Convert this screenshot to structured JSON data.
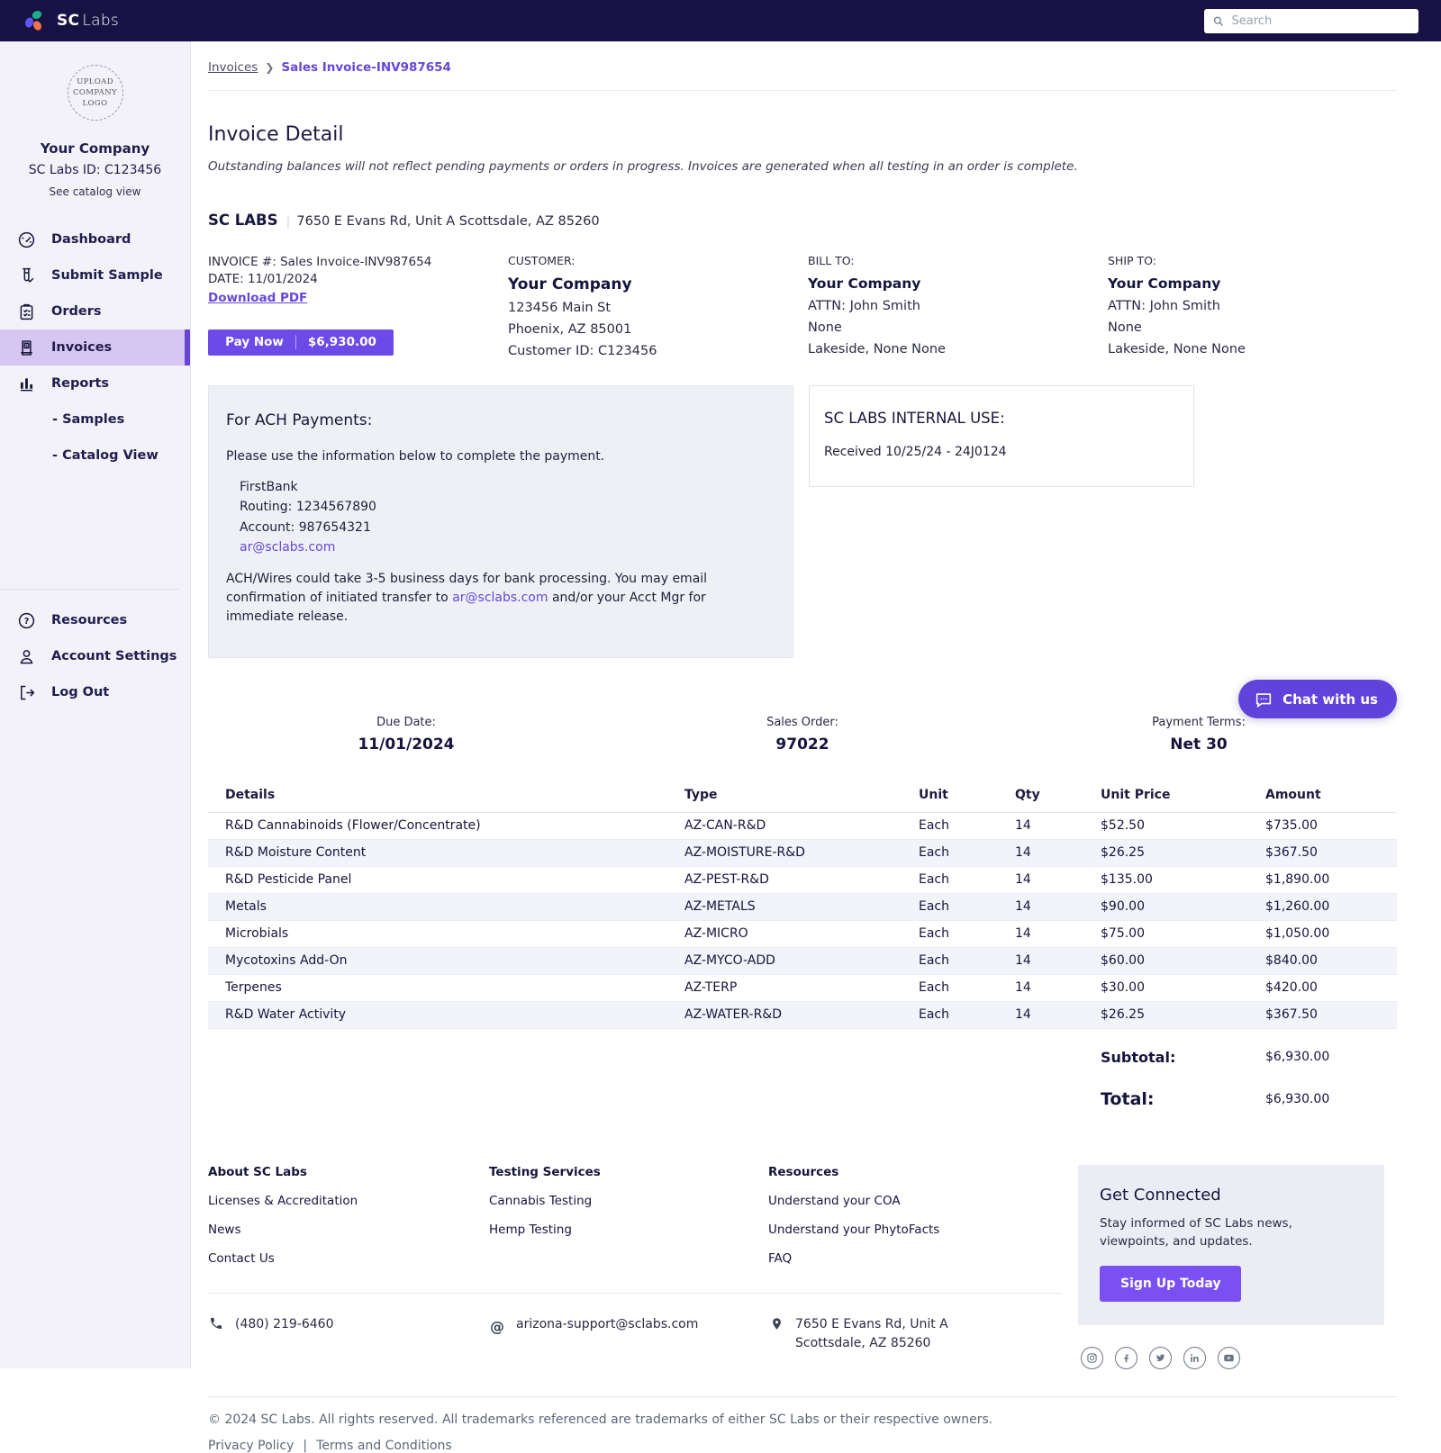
{
  "colors": {
    "topbar": "#171243",
    "accent": "#6c4ae8",
    "link": "#6747d8",
    "active_nav_bg": "#d6c6f2",
    "active_nav_border": "#6845d8",
    "stripe": "#f3f3fa",
    "chat": "#6043da",
    "signup": "#7b50f2"
  },
  "topbar": {
    "brand_bold": "SC",
    "brand_light": "Labs",
    "search_placeholder": "Search"
  },
  "sidebar": {
    "logo_placeholder": "UPLOAD COMPANY LOGO",
    "company_name": "Your Company",
    "company_id": "SC Labs ID: C123456",
    "catalog_link": "See catalog view",
    "nav": [
      {
        "id": "dashboard",
        "label": "Dashboard",
        "icon": "dashboard-icon",
        "active": false
      },
      {
        "id": "submit-sample",
        "label": "Submit Sample",
        "icon": "submit-sample-icon",
        "active": false
      },
      {
        "id": "orders",
        "label": "Orders",
        "icon": "orders-icon",
        "active": false
      },
      {
        "id": "invoices",
        "label": "Invoices",
        "icon": "invoices-icon",
        "active": true
      },
      {
        "id": "reports",
        "label": "Reports",
        "icon": "reports-icon",
        "active": false
      }
    ],
    "subnav": [
      {
        "id": "samples",
        "label": "- Samples"
      },
      {
        "id": "catalog-view",
        "label": "- Catalog View"
      }
    ],
    "bottom_nav": [
      {
        "id": "resources",
        "label": "Resources",
        "icon": "resources-icon"
      },
      {
        "id": "account-settings",
        "label": "Account Settings",
        "icon": "account-icon"
      },
      {
        "id": "log-out",
        "label": "Log Out",
        "icon": "logout-icon"
      }
    ]
  },
  "breadcrumb": {
    "parent": "Invoices",
    "separator": "❯",
    "current": "Sales Invoice-INV987654"
  },
  "page": {
    "title": "Invoice Detail",
    "note": "Outstanding balances will not reflect pending payments or orders in progress. Invoices are generated when all testing in an order is complete."
  },
  "lab_header": {
    "name": "SC LABS",
    "separator": "|",
    "address": "7650 E Evans Rd, Unit A Scottsdale, AZ 85260"
  },
  "invoice_meta": {
    "invoice_number": "INVOICE #: Sales Invoice-INV987654",
    "date": "DATE: 11/01/2024",
    "download_label": "Download PDF",
    "pay_now_label": "Pay Now",
    "pay_now_amount": "$6,930.00"
  },
  "customer": {
    "label": "CUSTOMER:",
    "company": "Your Company",
    "lines": [
      "123456 Main St",
      "Phoenix, AZ 85001",
      "Customer ID: C123456"
    ]
  },
  "bill_to": {
    "label": "BILL TO:",
    "company": "Your Company",
    "lines": [
      "ATTN: John Smith",
      "None",
      "Lakeside, None None"
    ]
  },
  "ship_to": {
    "label": "SHIP TO:",
    "company": "Your Company",
    "lines": [
      "ATTN: John Smith",
      "None",
      "Lakeside, None None"
    ]
  },
  "ach": {
    "title": "For ACH Payments:",
    "intro": "Please use the information below to complete the payment.",
    "bank_lines": [
      "FirstBank",
      "Routing: 1234567890",
      "Account: 987654321"
    ],
    "bank_email": "ar@sclabs.com",
    "note_pre": "ACH/Wires could take 3-5 business days for bank processing. You may email confirmation of initiated transfer to ",
    "note_link": "ar@sclabs.com",
    "note_post": " and/or your Acct Mgr for immediate release."
  },
  "internal": {
    "title": "SC LABS INTERNAL USE:",
    "line": "Received 10/25/24 - 24J0124"
  },
  "summary": {
    "due_date_label": "Due Date:",
    "due_date_value": "11/01/2024",
    "sales_order_label": "Sales Order:",
    "sales_order_value": "97022",
    "payment_terms_label": "Payment Terms:",
    "payment_terms_value": "Net 30"
  },
  "table": {
    "headers": [
      "Details",
      "Type",
      "Unit",
      "Qty",
      "Unit Price",
      "Amount"
    ],
    "rows": [
      {
        "details": "R&D Cannabinoids (Flower/Concentrate)",
        "type": "AZ-CAN-R&D",
        "unit": "Each",
        "qty": "14",
        "unit_price": "$52.50",
        "amount": "$735.00"
      },
      {
        "details": "R&D Moisture Content",
        "type": "AZ-MOISTURE-R&D",
        "unit": "Each",
        "qty": "14",
        "unit_price": "$26.25",
        "amount": "$367.50"
      },
      {
        "details": "R&D Pesticide Panel",
        "type": "AZ-PEST-R&D",
        "unit": "Each",
        "qty": "14",
        "unit_price": "$135.00",
        "amount": "$1,890.00"
      },
      {
        "details": "Metals",
        "type": "AZ-METALS",
        "unit": "Each",
        "qty": "14",
        "unit_price": "$90.00",
        "amount": "$1,260.00"
      },
      {
        "details": "Microbials",
        "type": "AZ-MICRO",
        "unit": "Each",
        "qty": "14",
        "unit_price": "$75.00",
        "amount": "$1,050.00"
      },
      {
        "details": "Mycotoxins Add-On",
        "type": "AZ-MYCO-ADD",
        "unit": "Each",
        "qty": "14",
        "unit_price": "$60.00",
        "amount": "$840.00"
      },
      {
        "details": "Terpenes",
        "type": "AZ-TERP",
        "unit": "Each",
        "qty": "14",
        "unit_price": "$30.00",
        "amount": "$420.00"
      },
      {
        "details": "R&D Water Activity",
        "type": "AZ-WATER-R&D",
        "unit": "Each",
        "qty": "14",
        "unit_price": "$26.25",
        "amount": "$367.50"
      }
    ],
    "subtotal_label": "Subtotal:",
    "subtotal_value": "$6,930.00",
    "total_label": "Total:",
    "total_value": "$6,930.00"
  },
  "chat": {
    "label": "Chat with us"
  },
  "footer": {
    "columns": [
      {
        "heading": "About SC Labs",
        "links": [
          "Licenses & Accreditation",
          "News",
          "Contact Us"
        ]
      },
      {
        "heading": "Testing Services",
        "links": [
          "Cannabis Testing",
          "Hemp Testing"
        ]
      },
      {
        "heading": "Resources",
        "links": [
          "Understand your COA",
          "Understand your PhytoFacts",
          "FAQ"
        ]
      }
    ],
    "contact": {
      "phone": "(480) 219-6460",
      "email": "arizona-support@sclabs.com",
      "address_line1": "7650 E Evans Rd, Unit A",
      "address_line2": "Scottsdale, AZ 85260"
    },
    "get_connected": {
      "title": "Get Connected",
      "text": "Stay informed of SC Labs news, viewpoints, and updates.",
      "button": "Sign Up Today"
    },
    "social": [
      "instagram-icon",
      "facebook-icon",
      "twitter-icon",
      "linkedin-icon",
      "youtube-icon"
    ],
    "copyright": "© 2024 SC Labs. All rights reserved. All trademarks referenced are trademarks of either SC Labs or their respective owners.",
    "legal": [
      "Privacy Policy",
      "Terms and Conditions"
    ],
    "legal_separator": "|"
  }
}
